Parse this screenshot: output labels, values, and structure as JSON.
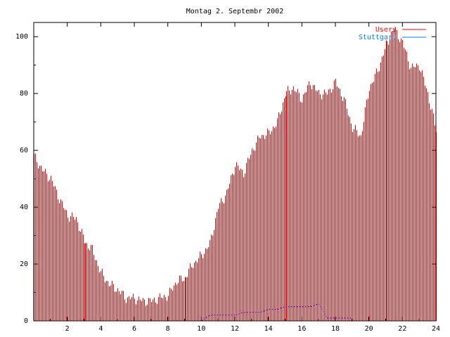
{
  "chart_data": {
    "type": "bar",
    "title": "Montag 2. Septembr 2002",
    "xlabel": "",
    "ylabel": "",
    "xlim": [
      0,
      24
    ],
    "ylim": [
      0,
      105
    ],
    "x_ticks": [
      "2",
      "4",
      "6",
      "8",
      "10",
      "12",
      "14",
      "16",
      "18",
      "20",
      "22",
      "24"
    ],
    "y_ticks": [
      "0",
      "20",
      "40",
      "60",
      "80",
      "100"
    ],
    "grid": false,
    "legend_position": "top-right",
    "series": [
      {
        "name": "Users",
        "style": "impulses",
        "color": "#ff0000",
        "x": [
          0.0,
          0.5,
          1.0,
          1.5,
          2.0,
          2.5,
          3.0,
          3.5,
          4.0,
          4.5,
          5.0,
          5.5,
          6.0,
          6.5,
          7.0,
          7.5,
          8.0,
          8.5,
          9.0,
          9.5,
          10.0,
          10.5,
          11.0,
          11.5,
          12.0,
          12.5,
          13.0,
          13.5,
          14.0,
          14.5,
          15.0,
          15.5,
          16.0,
          16.5,
          17.0,
          17.5,
          18.0,
          18.5,
          19.0,
          19.5,
          20.0,
          20.5,
          21.0,
          21.5,
          22.0,
          22.5,
          23.0,
          23.5,
          24.0
        ],
        "values": [
          58,
          53,
          50,
          43,
          37,
          36,
          28,
          25,
          17,
          13,
          11,
          8,
          8,
          7,
          7,
          8,
          9,
          14,
          15,
          20,
          23,
          27,
          40,
          45,
          55,
          52,
          60,
          65,
          66,
          70,
          80,
          82,
          78,
          84,
          80,
          80,
          84,
          78,
          68,
          65,
          82,
          88,
          97,
          103,
          98,
          89,
          90,
          80,
          67
        ]
      },
      {
        "name": "Stuttgart",
        "style": "lines",
        "color": "#0000cc",
        "x": [
          10.0,
          10.5,
          11.0,
          11.5,
          12.0,
          12.5,
          13.0,
          13.5,
          14.0,
          14.5,
          15.0,
          15.5,
          16.0,
          16.5,
          17.0,
          17.5,
          18.0,
          18.5,
          19.0
        ],
        "values": [
          0,
          2,
          2,
          2,
          2,
          3,
          3,
          3,
          4,
          4,
          5,
          5,
          5,
          5,
          6,
          1,
          1,
          1,
          1
        ]
      }
    ]
  }
}
